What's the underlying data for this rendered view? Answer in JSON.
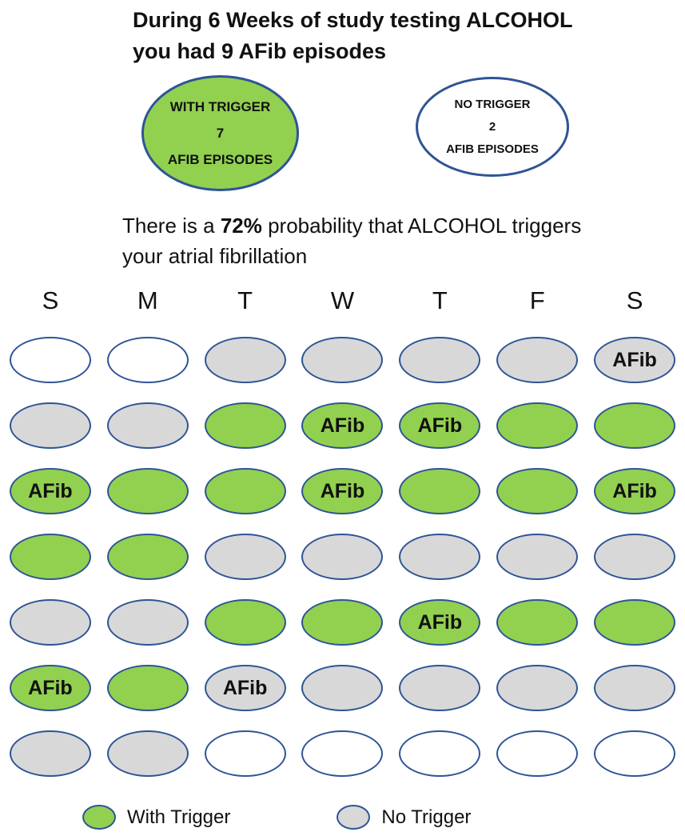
{
  "header": {
    "title": "During 6 Weeks of study testing ALCOHOL you had 9 AFib episodes"
  },
  "summary_bubbles": {
    "with_trigger": {
      "line1": "WITH TRIGGER",
      "count": "7",
      "line3": "AFIB EPISODES"
    },
    "no_trigger": {
      "line1": "NO TRIGGER",
      "count": "2",
      "line3": "AFIB EPISODES"
    }
  },
  "probability": {
    "prefix": "There is a ",
    "value": "72%",
    "suffix": " probability that ALCOHOL triggers your atrial fibrillation"
  },
  "calendar": {
    "day_headers": [
      "S",
      "M",
      "T",
      "W",
      "T",
      "F",
      "S"
    ],
    "afib_label": "AFib",
    "weeks": [
      [
        {
          "state": "blank"
        },
        {
          "state": "blank"
        },
        {
          "state": "control"
        },
        {
          "state": "control"
        },
        {
          "state": "control"
        },
        {
          "state": "control"
        },
        {
          "state": "control",
          "afib": true
        }
      ],
      [
        {
          "state": "control"
        },
        {
          "state": "control"
        },
        {
          "state": "trigger"
        },
        {
          "state": "trigger",
          "afib": true
        },
        {
          "state": "trigger",
          "afib": true
        },
        {
          "state": "trigger"
        },
        {
          "state": "trigger"
        }
      ],
      [
        {
          "state": "trigger",
          "afib": true
        },
        {
          "state": "trigger"
        },
        {
          "state": "trigger"
        },
        {
          "state": "trigger",
          "afib": true
        },
        {
          "state": "trigger"
        },
        {
          "state": "trigger"
        },
        {
          "state": "trigger",
          "afib": true
        }
      ],
      [
        {
          "state": "trigger"
        },
        {
          "state": "trigger"
        },
        {
          "state": "control"
        },
        {
          "state": "control"
        },
        {
          "state": "control"
        },
        {
          "state": "control"
        },
        {
          "state": "control"
        }
      ],
      [
        {
          "state": "control"
        },
        {
          "state": "control"
        },
        {
          "state": "trigger"
        },
        {
          "state": "trigger"
        },
        {
          "state": "trigger",
          "afib": true
        },
        {
          "state": "trigger"
        },
        {
          "state": "trigger"
        }
      ],
      [
        {
          "state": "trigger",
          "afib": true
        },
        {
          "state": "trigger"
        },
        {
          "state": "control",
          "afib": true
        },
        {
          "state": "control"
        },
        {
          "state": "control"
        },
        {
          "state": "control"
        },
        {
          "state": "control"
        }
      ],
      [
        {
          "state": "control"
        },
        {
          "state": "control"
        },
        {
          "state": "blank"
        },
        {
          "state": "blank"
        },
        {
          "state": "blank"
        },
        {
          "state": "blank"
        },
        {
          "state": "blank"
        }
      ]
    ]
  },
  "legend": [
    {
      "label": "With Trigger",
      "state": "trigger"
    },
    {
      "label": "No Trigger",
      "state": "control"
    }
  ],
  "colors": {
    "trigger_fill": "#92d050",
    "control_fill": "#d8d8d8",
    "blank_fill": "#ffffff",
    "ellipse_border": "#2e5496",
    "text": "#111111"
  },
  "chart_data": {
    "type": "table",
    "title": "During 6 Weeks of study testing ALCOHOL you had 9 AFib episodes",
    "trigger_name": "ALCOHOL",
    "study_weeks": 6,
    "total_afib_episodes": 9,
    "with_trigger_afib_episodes": 7,
    "no_trigger_afib_episodes": 2,
    "trigger_probability_percent": 72,
    "day_headers": [
      "S",
      "M",
      "T",
      "W",
      "T",
      "F",
      "S"
    ],
    "rows": [
      [
        "blank",
        "blank",
        "control",
        "control",
        "control",
        "control",
        "control+AFib"
      ],
      [
        "control",
        "control",
        "trigger",
        "trigger+AFib",
        "trigger+AFib",
        "trigger",
        "trigger"
      ],
      [
        "trigger+AFib",
        "trigger",
        "trigger",
        "trigger+AFib",
        "trigger",
        "trigger",
        "trigger+AFib"
      ],
      [
        "trigger",
        "trigger",
        "control",
        "control",
        "control",
        "control",
        "control"
      ],
      [
        "control",
        "control",
        "trigger",
        "trigger",
        "trigger+AFib",
        "trigger",
        "trigger"
      ],
      [
        "trigger+AFib",
        "trigger",
        "control+AFib",
        "control",
        "control",
        "control",
        "control"
      ],
      [
        "control",
        "control",
        "blank",
        "blank",
        "blank",
        "blank",
        "blank"
      ]
    ],
    "legend": [
      "With Trigger",
      "No Trigger"
    ]
  }
}
